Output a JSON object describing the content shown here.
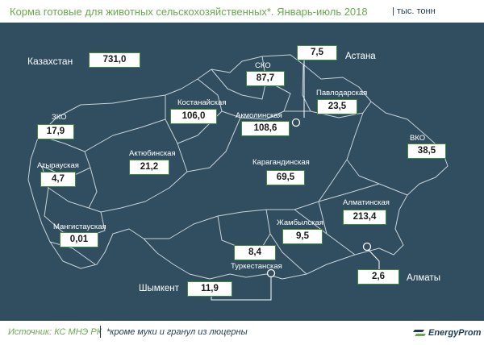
{
  "title": {
    "main": "Корма готовые для животных сельскохозяйственных*. Январь-июль 2018",
    "unit": "| тыс. тонн"
  },
  "country": {
    "name": "Казахстан",
    "value": "731,0"
  },
  "regions": [
    {
      "id": "zko",
      "name": "ЗКО",
      "value": "17,9"
    },
    {
      "id": "atyrau",
      "name": "Атырауская",
      "value": "4,7"
    },
    {
      "id": "mangistau",
      "name": "Мангистауская",
      "value": "0,01"
    },
    {
      "id": "aktobe",
      "name": "Актюбинская",
      "value": "21,2"
    },
    {
      "id": "kostanay",
      "name": "Костанайская",
      "value": "106,0"
    },
    {
      "id": "sko",
      "name": "СКО",
      "value": "87,7"
    },
    {
      "id": "akmola",
      "name": "Акмолинская",
      "value": "108,6"
    },
    {
      "id": "pavlodar",
      "name": "Павлодарская",
      "value": "23,5"
    },
    {
      "id": "vko",
      "name": "ВКО",
      "value": "38,5"
    },
    {
      "id": "karaganda",
      "name": "Карагандинская",
      "value": "69,5"
    },
    {
      "id": "almaty-region",
      "name": "Алматинская",
      "value": "213,4"
    },
    {
      "id": "zhambyl",
      "name": "Жамбылская",
      "value": "9,5"
    },
    {
      "id": "turkestan",
      "name": "Туркестанская",
      "value": "8,4"
    }
  ],
  "cities": [
    {
      "id": "astana",
      "name": "Астана",
      "value": "7,5"
    },
    {
      "id": "almaty",
      "name": "Алматы",
      "value": "2,6"
    },
    {
      "id": "shymkent",
      "name": "Шымкент",
      "value": "11,9"
    }
  ],
  "footer": {
    "source": "Источник: КС МНЭ РК",
    "note": "*кроме муки и гранул из люцерны",
    "logo": "EnergyProm"
  },
  "colors": {
    "background": "#304e5f",
    "region_border": "#c9d3d9",
    "box_border": "#3f8a3a",
    "title": "#6aa84f"
  }
}
